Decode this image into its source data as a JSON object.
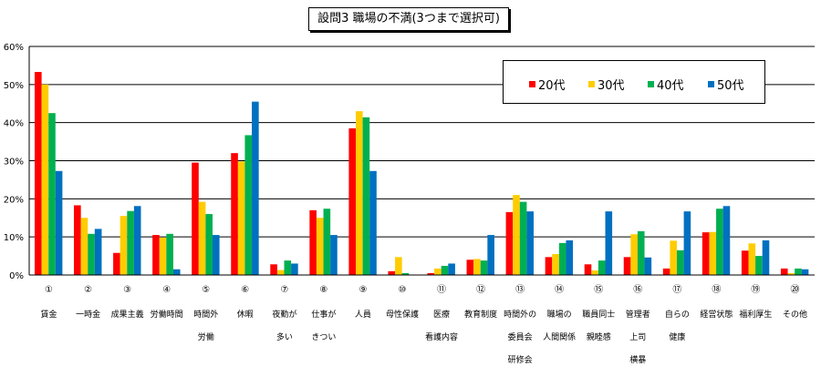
{
  "chart_data": {
    "type": "bar",
    "title": "設問3 職場の不満(3つまで選択可)",
    "xlabel": "",
    "ylabel": "",
    "ylim": [
      0,
      60
    ],
    "yticks": [
      "0%",
      "10%",
      "20%",
      "30%",
      "40%",
      "50%",
      "60%"
    ],
    "grid": true,
    "legend_position": "top-right",
    "categories": [
      {
        "mark": "①",
        "label": [
          "賃金"
        ]
      },
      {
        "mark": "②",
        "label": [
          "一時金"
        ]
      },
      {
        "mark": "③",
        "label": [
          "成果主義"
        ]
      },
      {
        "mark": "④",
        "label": [
          "労働時間"
        ]
      },
      {
        "mark": "⑤",
        "label": [
          "時間外",
          "労働"
        ]
      },
      {
        "mark": "⑥",
        "label": [
          "休暇"
        ]
      },
      {
        "mark": "⑦",
        "label": [
          "夜勤が",
          "多い"
        ]
      },
      {
        "mark": "⑧",
        "label": [
          "仕事が",
          "きつい"
        ]
      },
      {
        "mark": "⑨",
        "label": [
          "人員"
        ]
      },
      {
        "mark": "⑩",
        "label": [
          "母性保護"
        ]
      },
      {
        "mark": "⑪",
        "label": [
          "医療",
          "看護内容"
        ]
      },
      {
        "mark": "⑫",
        "label": [
          "教育制度"
        ]
      },
      {
        "mark": "⑬",
        "label": [
          "時間外の",
          "委員会",
          "研修会"
        ]
      },
      {
        "mark": "⑭",
        "label": [
          "職場の",
          "人間関係"
        ]
      },
      {
        "mark": "⑮",
        "label": [
          "職員同士",
          "親睦感"
        ]
      },
      {
        "mark": "⑯",
        "label": [
          "管理者",
          "上司",
          "横暴"
        ]
      },
      {
        "mark": "⑰",
        "label": [
          "自らの",
          "健康"
        ]
      },
      {
        "mark": "⑱",
        "label": [
          "経営状態"
        ]
      },
      {
        "mark": "⑲",
        "label": [
          "福利厚生"
        ]
      },
      {
        "mark": "⑳",
        "label": [
          "その他"
        ]
      }
    ],
    "series": [
      {
        "name": "20代",
        "color": "#ff0000",
        "values": [
          53.3,
          18.3,
          5.8,
          10.5,
          29.5,
          32.0,
          2.8,
          17.0,
          38.5,
          1.0,
          0.5,
          4.0,
          16.5,
          4.7,
          2.8,
          4.7,
          1.7,
          11.2,
          6.4,
          1.7
        ]
      },
      {
        "name": "30代",
        "color": "#ffcc00",
        "values": [
          50.0,
          15.0,
          15.5,
          9.8,
          19.2,
          29.8,
          1.3,
          15.0,
          43.0,
          4.7,
          1.7,
          4.2,
          21.0,
          5.5,
          1.2,
          10.7,
          9.0,
          11.3,
          8.3,
          0.5
        ]
      },
      {
        "name": "40代",
        "color": "#00b050",
        "values": [
          42.5,
          10.8,
          16.8,
          10.8,
          16.0,
          36.7,
          3.8,
          17.4,
          41.4,
          0.5,
          2.4,
          3.8,
          19.2,
          8.4,
          3.8,
          11.5,
          6.5,
          17.4,
          5.0,
          1.7
        ]
      },
      {
        "name": "50代",
        "color": "#0070c0",
        "values": [
          27.3,
          12.1,
          18.1,
          1.5,
          10.5,
          45.5,
          3.0,
          10.5,
          27.3,
          0.0,
          3.0,
          10.5,
          16.7,
          9.1,
          16.7,
          4.6,
          16.7,
          18.1,
          9.1,
          1.5
        ]
      }
    ]
  }
}
